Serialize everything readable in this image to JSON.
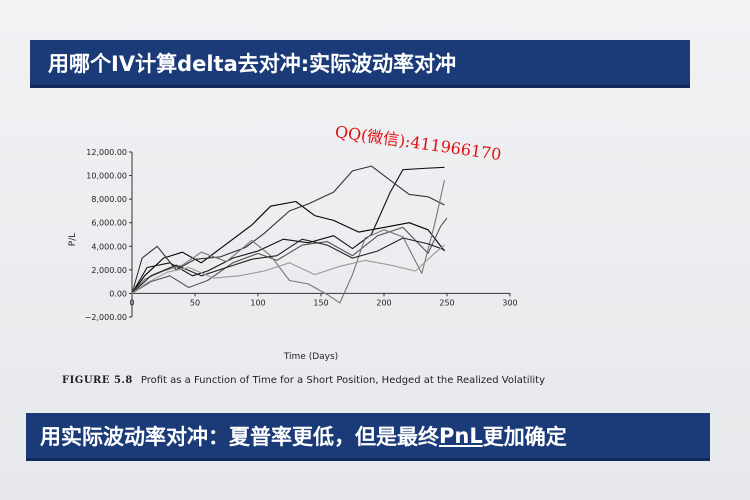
{
  "slide": {
    "title": "用哪个IV计算delta去对冲:实际波动率对冲",
    "watermark": "QQ(微信):411966170",
    "bottom_prefix": "用实际波动率对冲：夏普率更低，但是最终",
    "bottom_pnl": "PnL",
    "bottom_suffix": "更加确定"
  },
  "figure": {
    "label": "FIGURE 5.8",
    "caption": "Profit as a Function of Time for a Short Position, Hedged at the Realized Volatility"
  },
  "chart_data": {
    "type": "line",
    "xlabel": "Time (Days)",
    "ylabel": "P/L",
    "xlim": [
      0,
      300
    ],
    "ylim": [
      -2000,
      12000
    ],
    "xticks": [
      0,
      50,
      100,
      150,
      200,
      250,
      300
    ],
    "yticks": [
      -2000,
      0,
      2000,
      4000,
      6000,
      8000,
      10000,
      12000
    ],
    "ytick_labels": [
      "−2,000.00",
      "0.00",
      "2,000.00",
      "4,000.00",
      "6,000.00",
      "8,000.00",
      "10,000.00",
      "12,000.00"
    ],
    "grid": false,
    "series": [
      {
        "color": "#000000",
        "values": [
          [
            0,
            0
          ],
          [
            10,
            1500
          ],
          [
            25,
            3000
          ],
          [
            40,
            3500
          ],
          [
            55,
            2600
          ],
          [
            75,
            4200
          ],
          [
            95,
            5800
          ],
          [
            110,
            7400
          ],
          [
            130,
            7800
          ],
          [
            145,
            6600
          ],
          [
            160,
            6200
          ],
          [
            180,
            5200
          ],
          [
            200,
            5600
          ],
          [
            220,
            6000
          ],
          [
            235,
            5400
          ],
          [
            248,
            3600
          ]
        ]
      },
      {
        "color": "#111111",
        "values": [
          [
            0,
            0
          ],
          [
            12,
            2200
          ],
          [
            30,
            2600
          ],
          [
            48,
            1500
          ],
          [
            60,
            1900
          ],
          [
            80,
            3000
          ],
          [
            100,
            3600
          ],
          [
            120,
            4600
          ],
          [
            140,
            4300
          ],
          [
            160,
            4900
          ],
          [
            175,
            3800
          ],
          [
            190,
            5000
          ],
          [
            205,
            8600
          ],
          [
            215,
            10500
          ],
          [
            230,
            10600
          ],
          [
            248,
            10700
          ]
        ]
      },
      {
        "color": "#333333",
        "values": [
          [
            0,
            0
          ],
          [
            8,
            3000
          ],
          [
            20,
            4000
          ],
          [
            35,
            2000
          ],
          [
            50,
            2900
          ],
          [
            70,
            3100
          ],
          [
            90,
            3900
          ],
          [
            105,
            5100
          ],
          [
            125,
            7000
          ],
          [
            140,
            7600
          ],
          [
            160,
            8600
          ],
          [
            175,
            10400
          ],
          [
            190,
            10800
          ],
          [
            205,
            9600
          ],
          [
            220,
            8400
          ],
          [
            235,
            8200
          ],
          [
            248,
            7500
          ]
        ]
      },
      {
        "color": "#555555",
        "values": [
          [
            0,
            0
          ],
          [
            15,
            1000
          ],
          [
            30,
            1500
          ],
          [
            45,
            500
          ],
          [
            60,
            1100
          ],
          [
            80,
            2600
          ],
          [
            100,
            3400
          ],
          [
            115,
            2800
          ],
          [
            135,
            4100
          ],
          [
            155,
            4400
          ],
          [
            175,
            3200
          ],
          [
            195,
            4900
          ],
          [
            215,
            5600
          ],
          [
            235,
            3400
          ],
          [
            245,
            5700
          ],
          [
            250,
            6400
          ]
        ]
      },
      {
        "color": "#777777",
        "values": [
          [
            0,
            0
          ],
          [
            10,
            1200
          ],
          [
            25,
            1900
          ],
          [
            40,
            2400
          ],
          [
            55,
            3500
          ],
          [
            75,
            2700
          ],
          [
            95,
            4500
          ],
          [
            110,
            3200
          ],
          [
            125,
            1100
          ],
          [
            140,
            800
          ],
          [
            155,
            -100
          ],
          [
            165,
            -800
          ],
          [
            175,
            1600
          ],
          [
            185,
            4700
          ],
          [
            200,
            5400
          ],
          [
            215,
            4800
          ],
          [
            230,
            1700
          ],
          [
            240,
            5800
          ],
          [
            248,
            9600
          ]
        ]
      },
      {
        "color": "#222222",
        "values": [
          [
            0,
            0
          ],
          [
            15,
            1500
          ],
          [
            35,
            2400
          ],
          [
            55,
            1500
          ],
          [
            75,
            2200
          ],
          [
            95,
            2900
          ],
          [
            115,
            3200
          ],
          [
            135,
            4600
          ],
          [
            155,
            4100
          ],
          [
            175,
            3000
          ],
          [
            195,
            3600
          ],
          [
            215,
            4700
          ],
          [
            235,
            4200
          ],
          [
            248,
            3700
          ]
        ]
      },
      {
        "color": "#999999",
        "values": [
          [
            0,
            0
          ],
          [
            12,
            900
          ],
          [
            28,
            1800
          ],
          [
            45,
            2200
          ],
          [
            65,
            1300
          ],
          [
            85,
            1500
          ],
          [
            105,
            1900
          ],
          [
            125,
            2600
          ],
          [
            145,
            1600
          ],
          [
            165,
            2300
          ],
          [
            185,
            2800
          ],
          [
            205,
            2400
          ],
          [
            225,
            1900
          ],
          [
            240,
            3400
          ],
          [
            248,
            4100
          ]
        ]
      }
    ]
  }
}
